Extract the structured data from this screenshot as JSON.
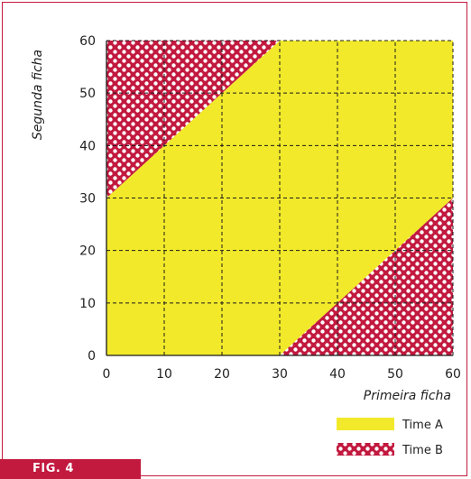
{
  "figure": {
    "tag": "FIG. 4"
  },
  "colors": {
    "frame": "#c2193f",
    "team_a": "#f2e92a",
    "team_b": "#c2193f",
    "dots": "#ffffff",
    "grid": "#1a1a1a"
  },
  "chart_data": {
    "type": "area",
    "xlabel": "Primeira ficha",
    "ylabel": "Segunda ficha",
    "xlim": [
      0,
      60
    ],
    "ylim": [
      0,
      60
    ],
    "xticks": [
      0,
      10,
      20,
      30,
      40,
      50,
      60
    ],
    "yticks": [
      0,
      10,
      20,
      30,
      40,
      50,
      60
    ],
    "grid": true,
    "grid_style": "dashed",
    "legend_position": "bottom-right",
    "regions": [
      {
        "name": "Time A",
        "pattern": "solid",
        "polygon": [
          [
            0,
            0
          ],
          [
            30,
            0
          ],
          [
            60,
            30
          ],
          [
            60,
            60
          ],
          [
            30,
            60
          ],
          [
            0,
            30
          ]
        ]
      },
      {
        "name": "Time B",
        "pattern": "dots",
        "polygon": [
          [
            0,
            30
          ],
          [
            30,
            60
          ],
          [
            0,
            60
          ]
        ]
      },
      {
        "name": "Time B",
        "pattern": "dots",
        "polygon": [
          [
            30,
            0
          ],
          [
            60,
            0
          ],
          [
            60,
            30
          ]
        ]
      }
    ],
    "legend": [
      {
        "label": "Time A",
        "pattern": "solid"
      },
      {
        "label": "Time B",
        "pattern": "dots"
      }
    ]
  }
}
